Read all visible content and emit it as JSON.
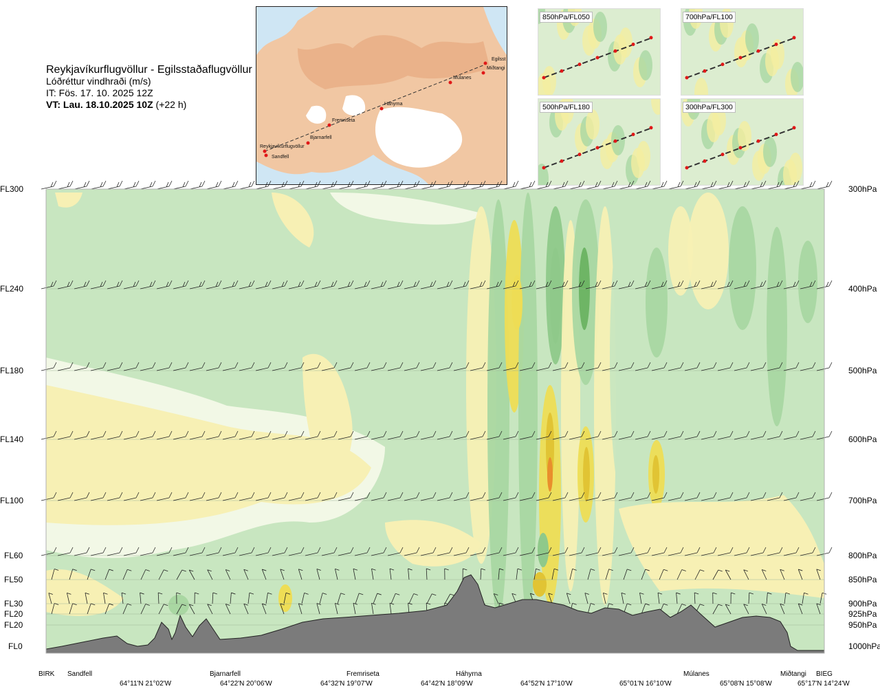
{
  "header": {
    "route": "Reykjavíkurflugvöllur - Egilsstaðaflugvöllur",
    "parameter": "Lóðréttur vindhraði (m/s)",
    "issue_time": "IT: Fös. 17. 10. 2025 12Z",
    "valid_time": "VT: Lau. 18.10.2025 10Z",
    "lead_time": "(+22 h)"
  },
  "map_inset": {
    "points": [
      {
        "name": "Reykjavíkurflugvöllur"
      },
      {
        "name": "Sandfell"
      },
      {
        "name": "Bjarnarfell"
      },
      {
        "name": "Fremriseta"
      },
      {
        "name": "Háhyrna"
      },
      {
        "name": "Múlanes"
      },
      {
        "name": "Egilsst"
      },
      {
        "name": "Miðtangi"
      }
    ]
  },
  "level_maps": [
    {
      "label": "850hPa/FL050"
    },
    {
      "label": "700hPa/FL100"
    },
    {
      "label": "500hPa/FL180"
    },
    {
      "label": "300hPa/FL300"
    }
  ],
  "chart_data": {
    "type": "heatmap",
    "title": "Reykjavíkurflugvöllur - Egilsstaðaflugvöllur",
    "variable": "Lóðréttur vindhraði (m/s)",
    "flight_levels": [
      "FL300",
      "FL240",
      "FL180",
      "FL140",
      "FL100",
      "FL60",
      "FL50",
      "FL30",
      "FL20",
      "FL20",
      "FL0"
    ],
    "pressure_levels": [
      "300hPa",
      "400hPa",
      "500hPa",
      "600hPa",
      "700hPa",
      "800hPa",
      "850hPa",
      "900hPa",
      "925hPa",
      "950hPa",
      "1000hPa"
    ],
    "locations": [
      "BIRK",
      "Sandfell",
      "Bjarnarfell",
      "Fremriseta",
      "Háhyrna",
      "Múlanes",
      "Miðtangi",
      "BIEG"
    ],
    "coordinates": [
      "64°11'N 21°02'W",
      "64°22'N 20°06'W",
      "64°32'N 19°07'W",
      "64°42'N 18°09'W",
      "64°52'N 17°10'W",
      "65°01'N 16°10'W",
      "65°08'N 15°08'W",
      "65°17'N 14°24'W"
    ],
    "colors": {
      "strong_down": "#8fc98a",
      "down": "#a9d7a2",
      "weak_down": "#c8e6c0",
      "neutral": "#f2f8e6",
      "weak_up": "#f7f0b4",
      "up": "#eedd55",
      "strong_up": "#e1c434",
      "max_up": "#e98e2c",
      "terrain": "#7b7b7b"
    }
  }
}
